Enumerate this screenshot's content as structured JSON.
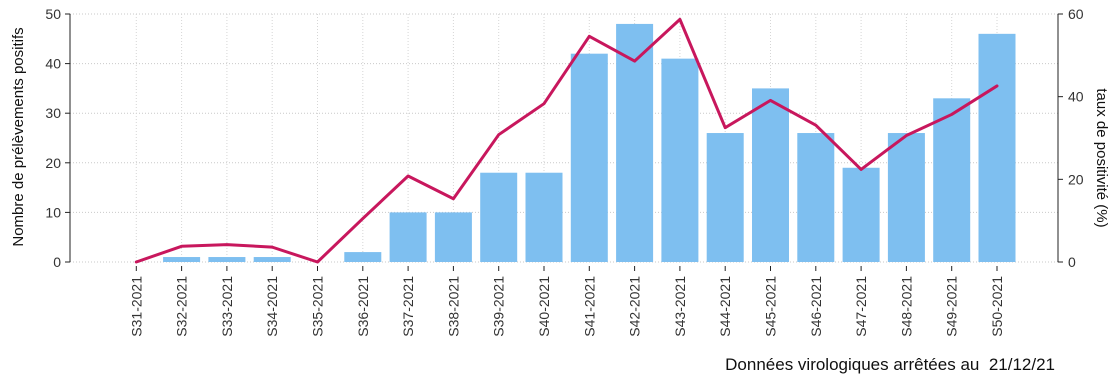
{
  "chart_data": {
    "type": "bar",
    "categories": [
      "S31-2021",
      "S32-2021",
      "S33-2021",
      "S34-2021",
      "S35-2021",
      "S36-2021",
      "S37-2021",
      "S38-2021",
      "S39-2021",
      "S40-2021",
      "S41-2021",
      "S42-2021",
      "S43-2021",
      "S44-2021",
      "S45-2021",
      "S46-2021",
      "S47-2021",
      "S48-2021",
      "S49-2021",
      "S50-2021"
    ],
    "series": [
      {
        "name": "Nombre de prélèvements positifs",
        "kind": "bar",
        "axis": "left",
        "color": "#7ebff0",
        "values": [
          0,
          1,
          1,
          1,
          0,
          2,
          10,
          10,
          18,
          18,
          42,
          48,
          41,
          26,
          35,
          26,
          19,
          26,
          33,
          46
        ]
      },
      {
        "name": "taux de positivité (%)",
        "kind": "line",
        "axis": "right",
        "color": "#c8175d",
        "values": [
          0,
          3.8,
          4.2,
          3.6,
          0,
          10.5,
          20.8,
          15.3,
          30.8,
          38.3,
          54.6,
          48.6,
          58.7,
          32.5,
          39.1,
          33.1,
          22.4,
          30.6,
          35.7,
          42.6
        ]
      }
    ],
    "ylabel": "Nombre de prélèvements positifs",
    "ylim": [
      0,
      50
    ],
    "yticks": [
      0,
      10,
      20,
      30,
      40,
      50
    ],
    "y2label": "taux de positivité (%)",
    "y2lim": [
      0,
      60
    ],
    "y2ticks": [
      0,
      20,
      40,
      60
    ],
    "grid": true,
    "legend": "none"
  },
  "footnote": {
    "label": "Données virologiques arrêtées au",
    "date": "21/12/21"
  }
}
